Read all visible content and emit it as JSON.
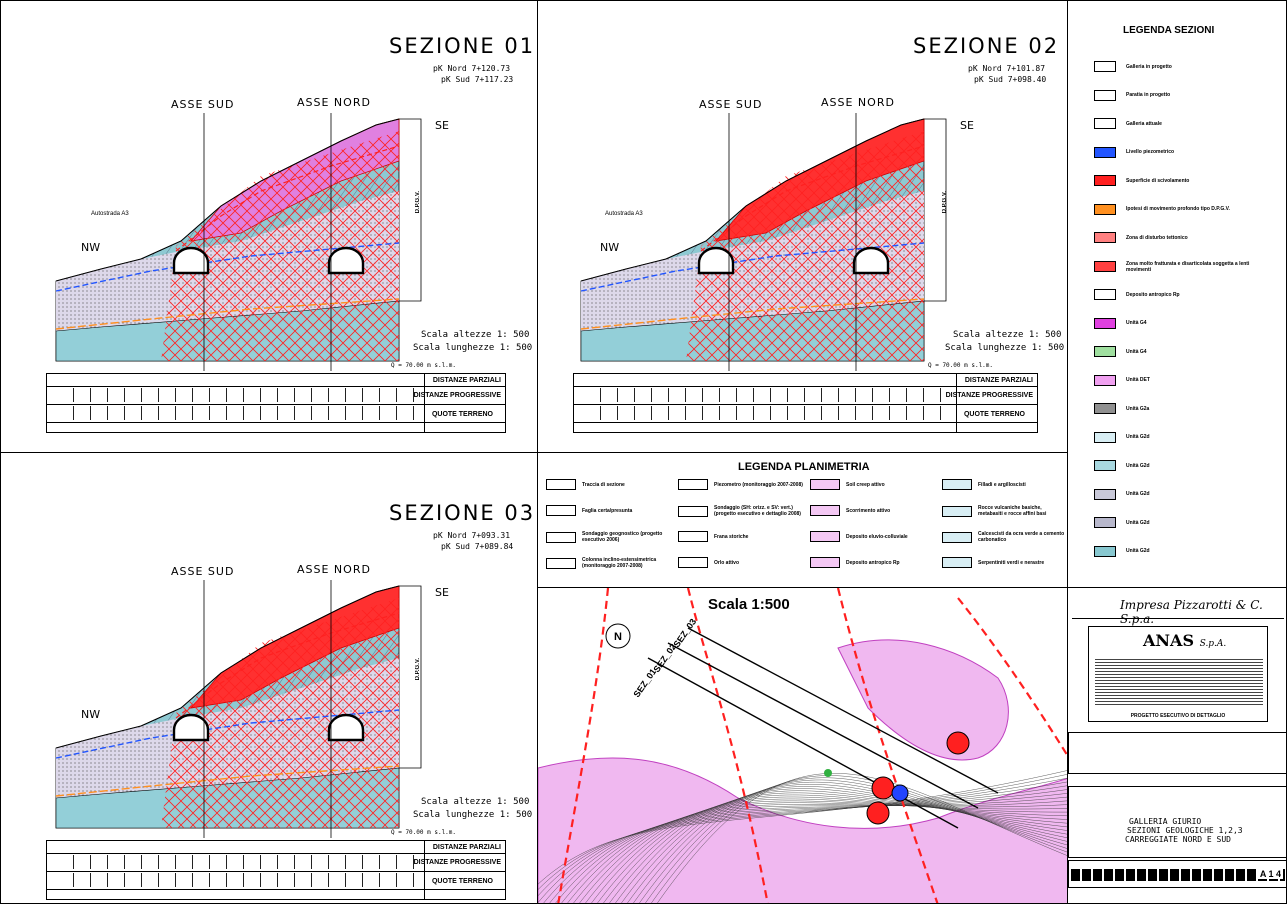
{
  "sections": [
    {
      "title": "SEZIONE  01",
      "pk_nord": "pK  Nord  7+120.73",
      "pk_sud": "pK  Sud  7+117.23",
      "asse_sud": "ASSE  SUD",
      "asse_nord": "ASSE  NORD",
      "nw": "NW",
      "se": "SE",
      "autostrada": "Autostrada  A3",
      "opgv": "D.P.G.V.",
      "scala_alt": "Scala  altezze  1:  500",
      "scala_lung": "Scala  lunghezze  1:  500",
      "q0": "Q =   70.00   m s.l.m.",
      "distanze_parziali": "DISTANZE PARZIALI",
      "distanze_progressive": "DISTANZE PROGRESSIVE",
      "quote_terreno": "QUOTE TERRENO"
    },
    {
      "title": "SEZIONE  02",
      "pk_nord": "pK  Nord  7+101.87",
      "pk_sud": "pK  Sud  7+098.40",
      "asse_sud": "ASSE  SUD",
      "asse_nord": "ASSE  NORD",
      "nw": "NW",
      "se": "SE",
      "autostrada": "Autostrada  A3",
      "opgv": "D.P.G.V.",
      "scala_alt": "Scala  altezze  1:  500",
      "scala_lung": "Scala  lunghezze  1:  500",
      "q0": "Q =   70.00   m s.l.m.",
      "distanze_parziali": "DISTANZE PARZIALI",
      "distanze_progressive": "DISTANZE PROGRESSIVE",
      "quote_terreno": "QUOTE TERRENO"
    },
    {
      "title": "SEZIONE  03",
      "pk_nord": "pK  Nord  7+093.31",
      "pk_sud": "pK  Sud  7+089.84",
      "asse_sud": "ASSE  SUD",
      "asse_nord": "ASSE  NORD",
      "nw": "NW",
      "se": "SE",
      "autostrada": "",
      "opgv": "D.P.G.V.",
      "scala_alt": "Scala  altezze  1:  500",
      "scala_lung": "Scala  lunghezze  1:  500",
      "q0": "Q =   70.00   m s.l.m.",
      "distanze_parziali": "DISTANZE PARZIALI",
      "distanze_progressive": "DISTANZE PROGRESSIVE",
      "quote_terreno": "QUOTE TERRENO"
    }
  ],
  "legenda_sezioni": {
    "title": "LEGENDA SEZIONI",
    "items": [
      {
        "label": "Galleria in progetto",
        "color": "#ffffff"
      },
      {
        "label": "Paratia in progetto",
        "color": "#ffffff"
      },
      {
        "label": "Galleria attuale",
        "color": "#ffffff"
      },
      {
        "label": "Livello piezometrico",
        "color": "#2255ff"
      },
      {
        "label": "Superficie di scivolamento",
        "color": "#ff2020"
      },
      {
        "label": "Ipotesi di movimento profondo tipo D.P.G.V.",
        "color": "#ff9020"
      },
      {
        "label": "Zona di disturbo tettonico",
        "color": "#ff8080"
      },
      {
        "label": "Zona molto fratturata e disarticolata soggetta a lenti movimenti",
        "color": "#ff4040"
      },
      {
        "label": "Deposito antropico Rp",
        "color": "#ffffff"
      },
      {
        "label": "Unità G4",
        "color": "#e040e0"
      },
      {
        "label": "Unità G4",
        "color": "#a0e0a0"
      },
      {
        "label": "Unità DET",
        "color": "#f0a0f0"
      },
      {
        "label": "Unità G2a",
        "color": "#909090"
      },
      {
        "label": "Unità G2d",
        "color": "#d8eef4"
      },
      {
        "label": "Unità G2d",
        "color": "#a8d8e0"
      },
      {
        "label": "Unità G2d",
        "color": "#c8c8d8"
      },
      {
        "label": "Unità G2d",
        "color": "#b8b8cc"
      },
      {
        "label": "Unità G2d",
        "color": "#88c8d0"
      }
    ]
  },
  "legenda_planimetria": {
    "title": "LEGENDA PLANIMETRIA",
    "col1": [
      {
        "label": "Traccia di sezione"
      },
      {
        "label": "Faglia certa/presunta"
      },
      {
        "label": "Sondaggio geognostico (progetto esecutivo 2006)"
      },
      {
        "label": "Colonna inclino-estensimetrica (monitoraggio 2007-2008)"
      }
    ],
    "col2": [
      {
        "label": "Piezometro (monitoraggio 2007-2008)"
      },
      {
        "label": "Sondaggio (SH: orizz. e SV: vert.) (progetto esecutivo e dettaglio 2008)"
      },
      {
        "label": "Frana storiche"
      },
      {
        "label": "Orlo attivo"
      }
    ],
    "col3": [
      {
        "label": "Soil creep attivo"
      },
      {
        "label": "Scorrimento attivo"
      },
      {
        "label": "Deposito eluvio-colluviale"
      },
      {
        "label": "Deposito antropico Rp"
      }
    ],
    "col4": [
      {
        "label": "Filladi e argilloscisti"
      },
      {
        "label": "Rocce vulcaniche basiche, metabasiti e rocce affini basi"
      },
      {
        "label": "Calcescisti da ocra verde a cemento carbonatico"
      },
      {
        "label": "Serpentiniti verdi e nerastre"
      }
    ]
  },
  "map": {
    "scala": "Scala 1:500",
    "north": "N",
    "sez_labels": [
      "SEZ_01",
      "SEZ_02",
      "SEZ_03"
    ]
  },
  "title_block": {
    "contractor": "Impresa Pizzarotti & C. S.p.a.",
    "anas": "ANAS",
    "anas_spa": "S.p.A.",
    "progetto": "PROGETTO ESECUTIVO DI DETTAGLIO",
    "opera": "GALLERIA GIURIO",
    "sezioni": "SEZIONI GEOLOGICHE 1,2,3",
    "carreggiate": "CARREGGIATE NORD E SUD",
    "codice": "A 1 4"
  }
}
